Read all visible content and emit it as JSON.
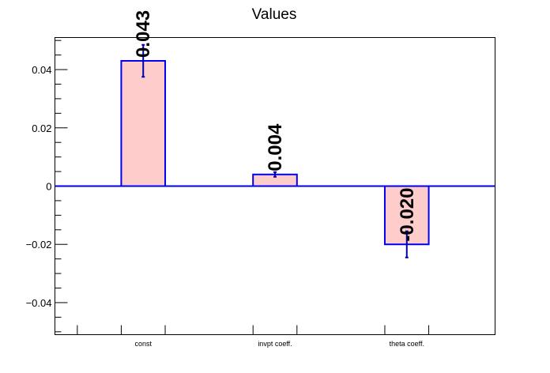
{
  "chart_data": {
    "type": "bar",
    "title": "Values",
    "xlabel": "",
    "ylabel": "",
    "categories": [
      "const",
      "invpt coeff.",
      "theta coeff."
    ],
    "values": [
      0.043,
      0.004,
      -0.02
    ],
    "errors": [
      0.0055,
      0.0008,
      0.0045
    ],
    "value_labels": [
      "0.043",
      "0.004",
      "-0.020"
    ],
    "ylim": [
      -0.051,
      0.051
    ],
    "yticks": [
      -0.04,
      -0.02,
      0,
      0.02,
      0.04
    ],
    "ytick_labels": [
      "−0.04",
      "−0.02",
      "0",
      "0.02",
      "0.04"
    ],
    "grid": false,
    "legend": false,
    "colors": {
      "bar_fill": "#ffcccc",
      "bar_edge": "#0000ee",
      "error_bar": "#0000aa",
      "text": "#000000"
    }
  }
}
